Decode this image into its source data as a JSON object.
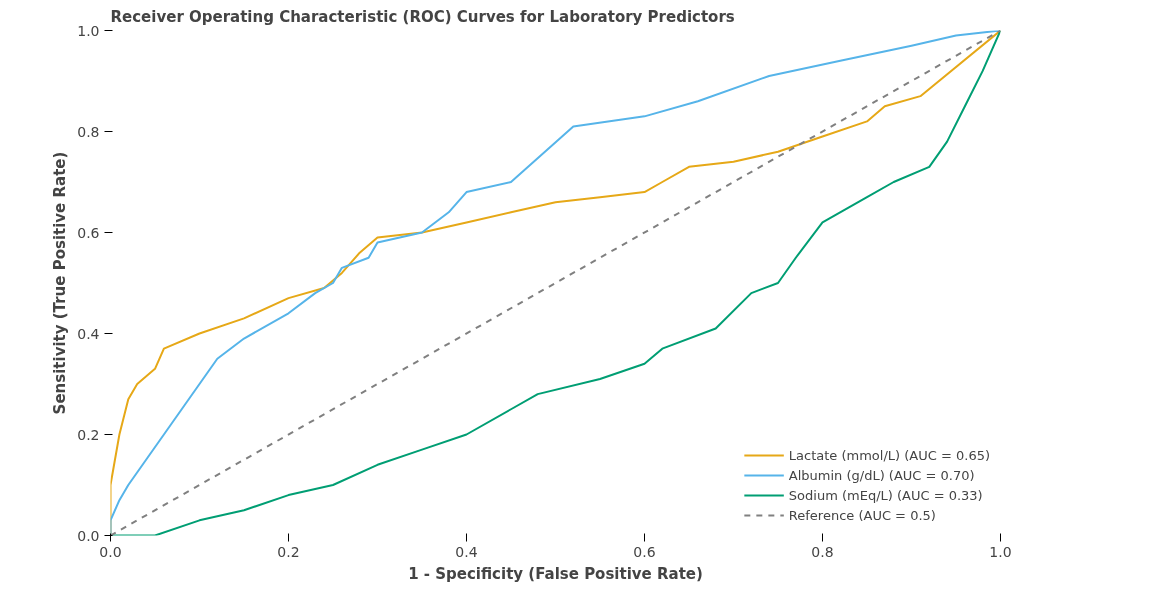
{
  "chart_data": {
    "type": "line",
    "title": "Receiver Operating Characteristic (ROC) Curves for Laboratory Predictors",
    "xlabel": "1 - Specificity (False Positive Rate)",
    "ylabel": "Sensitivity (True Positive Rate)",
    "xlim": [
      0,
      1
    ],
    "ylim": [
      0,
      1
    ],
    "xticks": [
      {
        "value": 0,
        "label": "0.0"
      },
      0.2,
      0.4,
      0.6,
      0.8,
      {
        "value": 1,
        "label": "1.0"
      }
    ],
    "yticks": [
      {
        "value": 0,
        "label": "0.0"
      },
      0.2,
      0.4,
      0.6,
      0.8,
      {
        "value": 1,
        "label": "1.0"
      }
    ],
    "grid": false,
    "legend": "bottom right",
    "marker": "none",
    "series": [
      {
        "name": "Lactate (mmol/L) (AUC = 0.65)",
        "color": "#e6a817",
        "line_style": "solid",
        "x": [
          0,
          0,
          0.01,
          0.02,
          0.03,
          0.05,
          0.06,
          0.1,
          0.15,
          0.2,
          0.24,
          0.26,
          0.28,
          0.3,
          0.35,
          0.4,
          0.45,
          0.5,
          0.55,
          0.6,
          0.62,
          0.65,
          0.7,
          0.75,
          0.8,
          0.85,
          0.87,
          0.91,
          1
        ],
        "values": [
          0,
          0.1,
          0.2,
          0.27,
          0.3,
          0.33,
          0.37,
          0.4,
          0.43,
          0.47,
          0.49,
          0.52,
          0.56,
          0.59,
          0.6,
          0.62,
          0.64,
          0.66,
          0.67,
          0.68,
          0.7,
          0.73,
          0.74,
          0.76,
          0.79,
          0.82,
          0.85,
          0.87,
          1
        ]
      },
      {
        "name": "Albumin (g/dL) (AUC = 0.70)",
        "color": "#56b4e9",
        "line_style": "solid",
        "x": [
          0,
          0,
          0.01,
          0.02,
          0.04,
          0.06,
          0.08,
          0.1,
          0.12,
          0.15,
          0.2,
          0.23,
          0.25,
          0.26,
          0.29,
          0.3,
          0.35,
          0.38,
          0.4,
          0.45,
          0.52,
          0.6,
          0.66,
          0.74,
          0.82,
          0.9,
          0.95,
          1
        ],
        "values": [
          0,
          0.03,
          0.07,
          0.1,
          0.15,
          0.2,
          0.25,
          0.3,
          0.35,
          0.39,
          0.44,
          0.48,
          0.5,
          0.53,
          0.55,
          0.58,
          0.6,
          0.64,
          0.68,
          0.7,
          0.81,
          0.83,
          0.86,
          0.91,
          0.94,
          0.97,
          0.99,
          1
        ]
      },
      {
        "name": "Sodium (mEq/L) (AUC = 0.33)",
        "color": "#009e73",
        "line_style": "solid",
        "x": [
          0,
          0.05,
          0.1,
          0.15,
          0.2,
          0.25,
          0.3,
          0.35,
          0.4,
          0.45,
          0.48,
          0.55,
          0.6,
          0.62,
          0.68,
          0.72,
          0.75,
          0.77,
          0.8,
          0.85,
          0.88,
          0.92,
          0.94,
          0.96,
          0.98,
          1
        ],
        "values": [
          0,
          0,
          0.03,
          0.05,
          0.08,
          0.1,
          0.14,
          0.17,
          0.2,
          0.25,
          0.28,
          0.31,
          0.34,
          0.37,
          0.41,
          0.48,
          0.5,
          0.55,
          0.62,
          0.67,
          0.7,
          0.73,
          0.78,
          0.85,
          0.92,
          1
        ]
      },
      {
        "name": "Reference (AUC = 0.5)",
        "color": "#808080",
        "line_style": "dashed",
        "x": [
          0,
          1
        ],
        "values": [
          0,
          1
        ]
      }
    ]
  }
}
